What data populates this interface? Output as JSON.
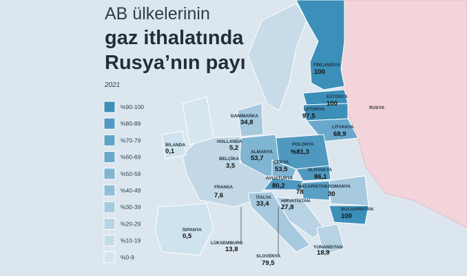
{
  "header": {
    "title_line1": "AB ülkelerinin",
    "title_line2": "gaz ithalatında",
    "title_line3": "Rusya’nın payı",
    "year": "2021"
  },
  "legend": [
    "%90-100",
    "%80-89",
    "%70-79",
    "%60-69",
    "%50-59",
    "%40-49",
    "%30-39",
    "%20-29",
    "%10-19",
    "%0-9"
  ],
  "countries": [
    {
      "name": "FİNLANDİYA",
      "value": "100"
    },
    {
      "name": "ESTONYA",
      "value": "100"
    },
    {
      "name": "LETONYA",
      "value": "97,5"
    },
    {
      "name": "LİTVANYA",
      "value": "68,9"
    },
    {
      "name": "DANİMARKA",
      "value": "34,8"
    },
    {
      "name": "HOLLANDA",
      "value": "5,2"
    },
    {
      "name": "İRLANDA",
      "value": "0,1"
    },
    {
      "name": "BELÇİKA",
      "value": "3,5"
    },
    {
      "name": "ALMANYA",
      "value": "53,7"
    },
    {
      "name": "POLONYA",
      "value": "%81,3"
    },
    {
      "name": "ÇEKYA",
      "value": "53,5"
    },
    {
      "name": "SLOVAKYA",
      "value": "86,1"
    },
    {
      "name": "AVUSTURYA",
      "value": "80,2"
    },
    {
      "name": "MACARİSTAN",
      "value": "78"
    },
    {
      "name": "ROMANYA",
      "value": "30"
    },
    {
      "name": "FRANSA",
      "value": "7,6"
    },
    {
      "name": "İTALYA",
      "value": "33,4"
    },
    {
      "name": "HIRVATİSTAN",
      "value": "27,8"
    },
    {
      "name": "BULGARİSTAN",
      "value": "100"
    },
    {
      "name": "İSPANYA",
      "value": "0,5"
    },
    {
      "name": "LÜKSEMBURG",
      "value": "13,8"
    },
    {
      "name": "YUNANİSTAN",
      "value": "18,9"
    },
    {
      "name": "SLOVENYA",
      "value": "79,5"
    }
  ],
  "other": {
    "russia": "RUSYA"
  }
}
